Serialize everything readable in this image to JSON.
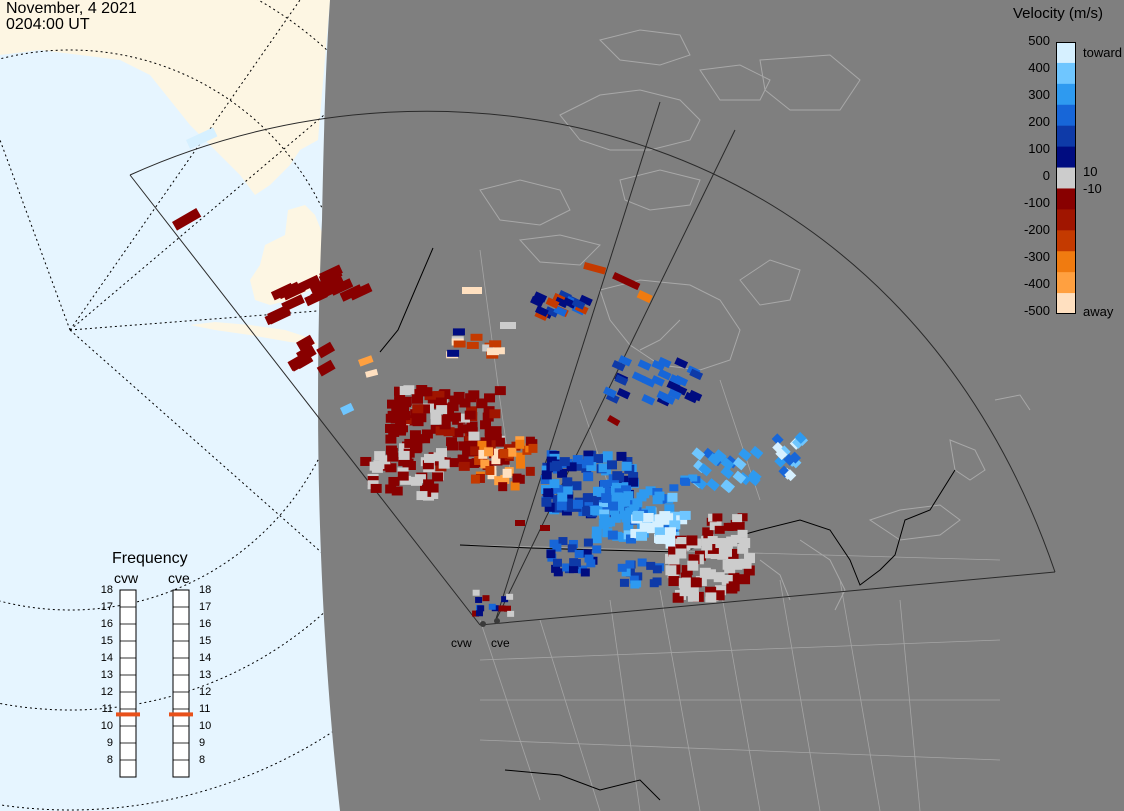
{
  "header": {
    "date": "November, 4 2021",
    "time": "0204:00 UT"
  },
  "colorbar": {
    "title": "Velocity (m/s)",
    "labels": [
      "500",
      "400",
      "300",
      "200",
      "100",
      "0",
      "-100",
      "-200",
      "-300",
      "-400",
      "-500"
    ],
    "toward_label": "toward",
    "away_label": "away",
    "pos_threshold": "10",
    "neg_threshold": "-10",
    "colors": [
      "#d6f0ff",
      "#6fc6ff",
      "#2e9af0",
      "#1766d8",
      "#0e3aa8",
      "#000c80",
      "#cccccc",
      "#880000",
      "#a01500",
      "#c43a00",
      "#f07b10",
      "#ffa040",
      "#ffe0c0"
    ]
  },
  "frequency": {
    "title": "Frequency",
    "radars": [
      {
        "name": "cvw",
        "value": 11
      },
      {
        "name": "cve",
        "value": 11
      }
    ],
    "ticks": [
      "18",
      "17",
      "16",
      "15",
      "14",
      "13",
      "12",
      "11",
      "10",
      "9",
      "8"
    ],
    "marker_color": "#e8501a"
  },
  "sites": {
    "west": "cvw",
    "east": "cve"
  },
  "map_colors": {
    "water": "#e6f5ff",
    "land": "#fdf6e3",
    "night": "#7f7f7f",
    "coast": "#a8a8a8",
    "border": "#000000"
  }
}
